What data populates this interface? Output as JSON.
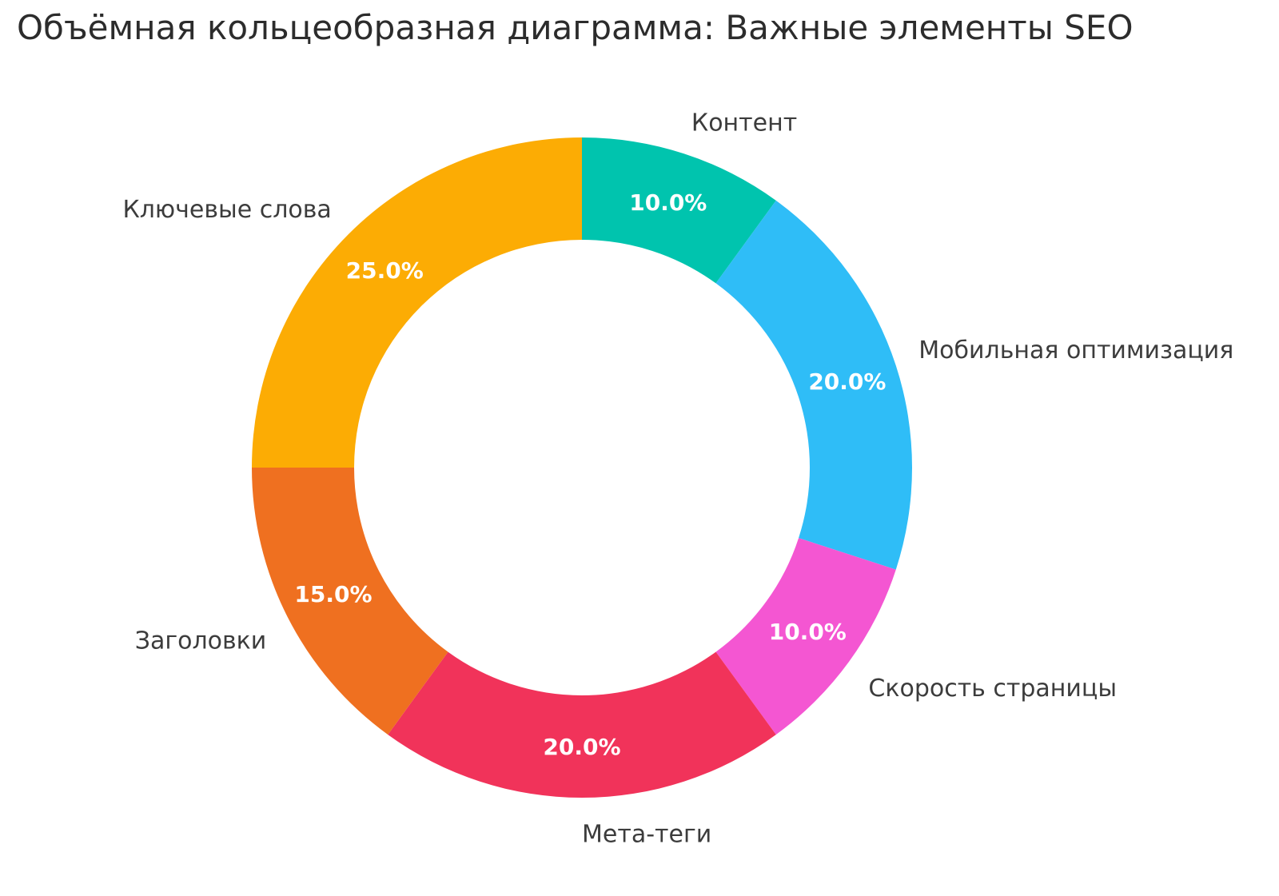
{
  "chart_data": {
    "type": "pie",
    "subtype": "donut",
    "title": "Объёмная кольцеобразная диаграмма: Важные элементы SEO",
    "categories": [
      "Контент",
      "Мобильная оптимизация",
      "Скорость страницы",
      "Мета-теги",
      "Заголовки",
      "Ключевые слова"
    ],
    "values": [
      10,
      20,
      10,
      20,
      15,
      25
    ],
    "percent_labels": [
      "10.0%",
      "20.0%",
      "10.0%",
      "20.0%",
      "15.0%",
      "25.0%"
    ],
    "colors": [
      "#00C4AE",
      "#2FBDF7",
      "#F456D2",
      "#F1335A",
      "#EF7020",
      "#FCAC04"
    ],
    "hole_ratio": 0.69,
    "start_angle_deg": 0,
    "direction": "clockwise",
    "legend": "none",
    "grid": false,
    "inside_text_color": "#FFFFFF",
    "outside_label_color": "#3C3C3C",
    "title_color": "#2C2C2C",
    "background_color": "#FFFFFF"
  }
}
